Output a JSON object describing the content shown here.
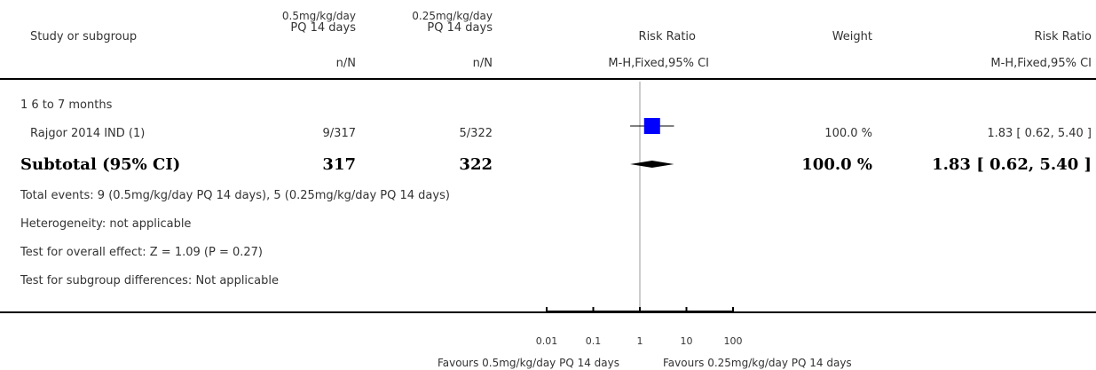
{
  "header": {
    "study_col": "Study or subgroup",
    "group1_line1": "0.5mg/kg/day",
    "group1_line2": "PQ 14 days",
    "group2_line1": "0.25mg/kg/day",
    "group2_line2": "PQ 14 days",
    "effect_col": "Risk Ratio",
    "weight_col": "Weight",
    "effect_col_right": "Risk Ratio",
    "group1_sub": "n/N",
    "group2_sub": "n/N",
    "effect_sub": "M-H,Fixed,95% CI",
    "effect_sub_right": "M-H,Fixed,95% CI"
  },
  "subgroup": {
    "label": "1 6 to 7 months"
  },
  "study": {
    "name": "Rajgor 2014 IND (1)",
    "events1": "9/317",
    "events2": "5/322",
    "weight": "100.0 %",
    "ci_text": "1.83 [ 0.62, 5.40 ]"
  },
  "subtotal": {
    "label": "Subtotal (95% CI)",
    "total1": "317",
    "total2": "322",
    "weight": "100.0 %",
    "ci_text": "1.83 [ 0.62, 5.40 ]"
  },
  "notes": {
    "total_events": "Total events: 9 (0.5mg/kg/day PQ 14 days), 5 (0.25mg/kg/day PQ 14 days)",
    "heterogeneity": "Heterogeneity: not applicable",
    "overall_effect": "Test for overall effect: Z = 1.09 (P = 0.27)",
    "subgroup_diff": "Test for subgroup differences: Not applicable"
  },
  "axis": {
    "favours_left": "Favours 0.5mg/kg/day PQ 14 days",
    "favours_right": "Favours 0.25mg/kg/day PQ 14 days"
  },
  "colors": {
    "study_marker": "#0000ff",
    "diamond": "#000000"
  },
  "chart_data": {
    "type": "forest",
    "scale": "log",
    "xlim": [
      0.01,
      100
    ],
    "ticks": [
      0.01,
      0.1,
      1,
      10,
      100
    ],
    "tick_labels": [
      "0.01",
      "0.1",
      "1",
      "10",
      "100"
    ],
    "null_line": 1,
    "studies": [
      {
        "name": "Rajgor 2014 IND (1)",
        "rr": 1.83,
        "lower": 0.62,
        "upper": 5.4,
        "weight": 100.0
      }
    ],
    "pooled": {
      "rr": 1.83,
      "lower": 0.62,
      "upper": 5.4
    }
  }
}
